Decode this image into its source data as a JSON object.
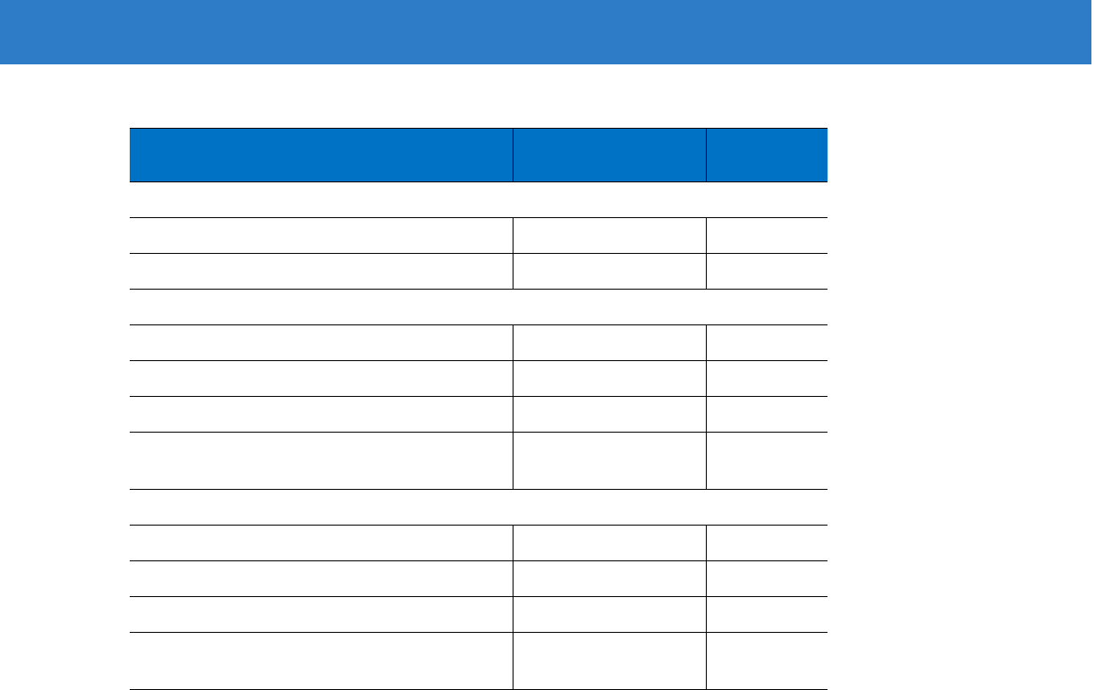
{
  "colors": {
    "banner": "#2e7bc8",
    "table_header": "#0072c6",
    "rule": "#000000"
  },
  "table": {
    "headers": [
      "",
      "",
      ""
    ],
    "rows": [
      {
        "kind": "section",
        "cells": [
          ""
        ]
      },
      {
        "kind": "row",
        "cells": [
          "",
          "",
          ""
        ]
      },
      {
        "kind": "row",
        "cells": [
          "",
          "",
          ""
        ]
      },
      {
        "kind": "section",
        "cells": [
          ""
        ]
      },
      {
        "kind": "row",
        "cells": [
          "",
          "",
          ""
        ]
      },
      {
        "kind": "row",
        "cells": [
          "",
          "",
          ""
        ]
      },
      {
        "kind": "row",
        "cells": [
          "",
          "",
          ""
        ]
      },
      {
        "kind": "tall",
        "cells": [
          "",
          "",
          ""
        ]
      },
      {
        "kind": "section",
        "cells": [
          ""
        ]
      },
      {
        "kind": "row",
        "cells": [
          "",
          "",
          ""
        ]
      },
      {
        "kind": "row",
        "cells": [
          "",
          "",
          ""
        ]
      },
      {
        "kind": "row",
        "cells": [
          "",
          "",
          ""
        ]
      },
      {
        "kind": "tall",
        "cells": [
          "",
          "",
          ""
        ]
      }
    ]
  }
}
